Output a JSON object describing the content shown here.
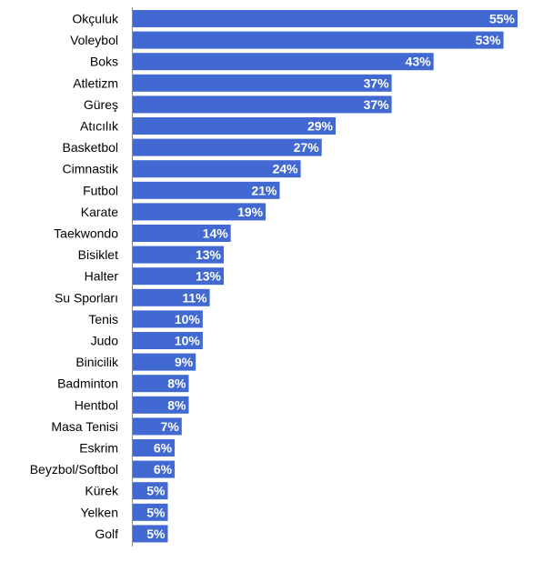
{
  "chart_data": {
    "type": "bar",
    "orientation": "horizontal",
    "categories": [
      "Okçuluk",
      "Voleybol",
      "Boks",
      "Atletizm",
      "Güreş",
      "Atıcılık",
      "Basketbol",
      "Cimnastik",
      "Futbol",
      "Karate",
      "Taekwondo",
      "Bisiklet",
      "Halter",
      "Su Sporları",
      "Tenis",
      "Judo",
      "Binicilik",
      "Badminton",
      "Hentbol",
      "Masa Tenisi",
      "Eskrim",
      "Beyzbol/Softbol",
      "Kürek",
      "Yelken",
      "Golf"
    ],
    "values": [
      55,
      53,
      43,
      37,
      37,
      29,
      27,
      24,
      21,
      19,
      14,
      13,
      13,
      11,
      10,
      10,
      9,
      8,
      8,
      7,
      6,
      6,
      5,
      5,
      5
    ],
    "value_labels": [
      "55%",
      "53%",
      "43%",
      "37%",
      "37%",
      "29%",
      "27%",
      "24%",
      "21%",
      "19%",
      "14%",
      "13%",
      "13%",
      "11%",
      "10%",
      "10%",
      "9%",
      "8%",
      "8%",
      "7%",
      "6%",
      "6%",
      "5%",
      "5%",
      "5%"
    ],
    "unit": "%",
    "title": "",
    "xlabel": "",
    "ylabel": "",
    "xlim": [
      0,
      55
    ],
    "grid": false,
    "legend": "none",
    "bar_color": "#4169d1",
    "axis_color": "#8c8c8c",
    "label_color": "#000000",
    "value_label_color": "#ffffff"
  }
}
